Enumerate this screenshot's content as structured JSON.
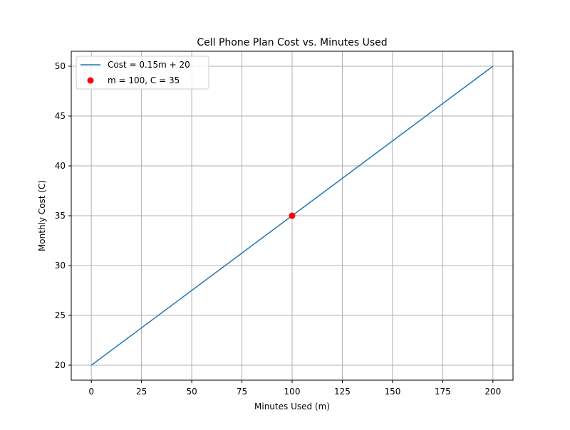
{
  "chart_data": {
    "type": "line",
    "title": "Cell Phone Plan Cost vs. Minutes Used",
    "xlabel": "Minutes Used (m)",
    "ylabel": "Monthly Cost (C)",
    "xlim": [
      -10,
      210
    ],
    "ylim": [
      18.5,
      51.5
    ],
    "xticks": [
      0,
      25,
      50,
      75,
      100,
      125,
      150,
      175,
      200
    ],
    "yticks": [
      20,
      25,
      30,
      35,
      40,
      45,
      50
    ],
    "grid": true,
    "legend_position": "top-left",
    "series": [
      {
        "name": "Cost = 0.15m + 20",
        "kind": "line",
        "color": "#1f77b4",
        "x": [
          0,
          200
        ],
        "y": [
          20,
          50
        ]
      },
      {
        "name": "m = 100, C = 35",
        "kind": "scatter",
        "color": "#ff0000",
        "x": [
          100
        ],
        "y": [
          35
        ]
      }
    ]
  }
}
